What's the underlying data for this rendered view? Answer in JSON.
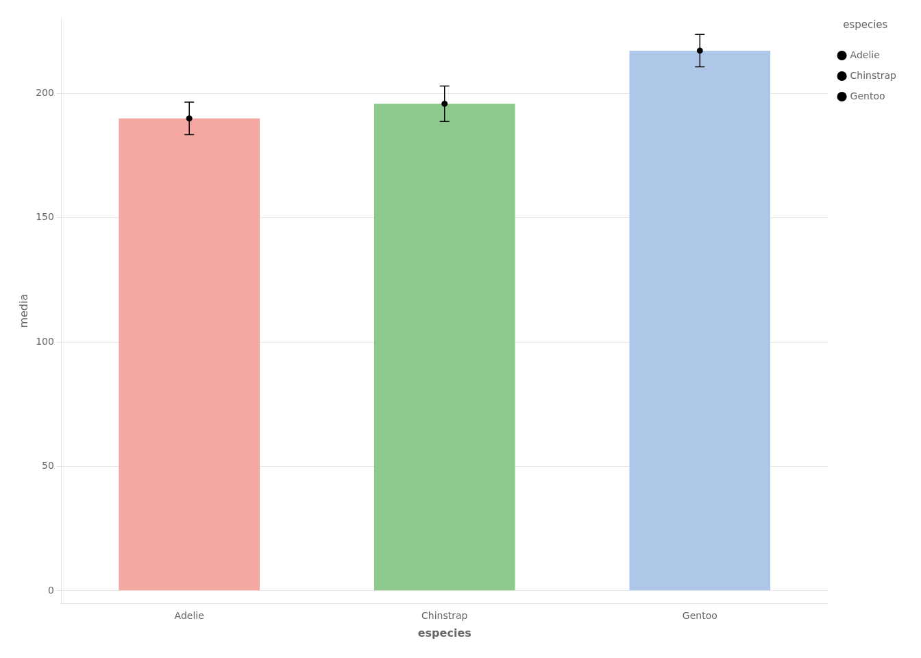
{
  "chart_data": {
    "type": "bar",
    "categories": [
      "Adelie",
      "Chinstrap",
      "Gentoo"
    ],
    "values": [
      189.95,
      195.82,
      217.19
    ],
    "errors": [
      6.54,
      7.13,
      6.48
    ],
    "colors": [
      "#f4a8a1",
      "#8dc98d",
      "#aec6e8"
    ],
    "xlabel": "especies",
    "ylabel": "media",
    "legend_title": "especies",
    "legend_entries": [
      "Adelie",
      "Chinstrap",
      "Gentoo"
    ],
    "legend": "right",
    "ylim": [
      -5,
      230
    ],
    "yticks": [
      0,
      50,
      100,
      150,
      200
    ],
    "grid": true
  }
}
